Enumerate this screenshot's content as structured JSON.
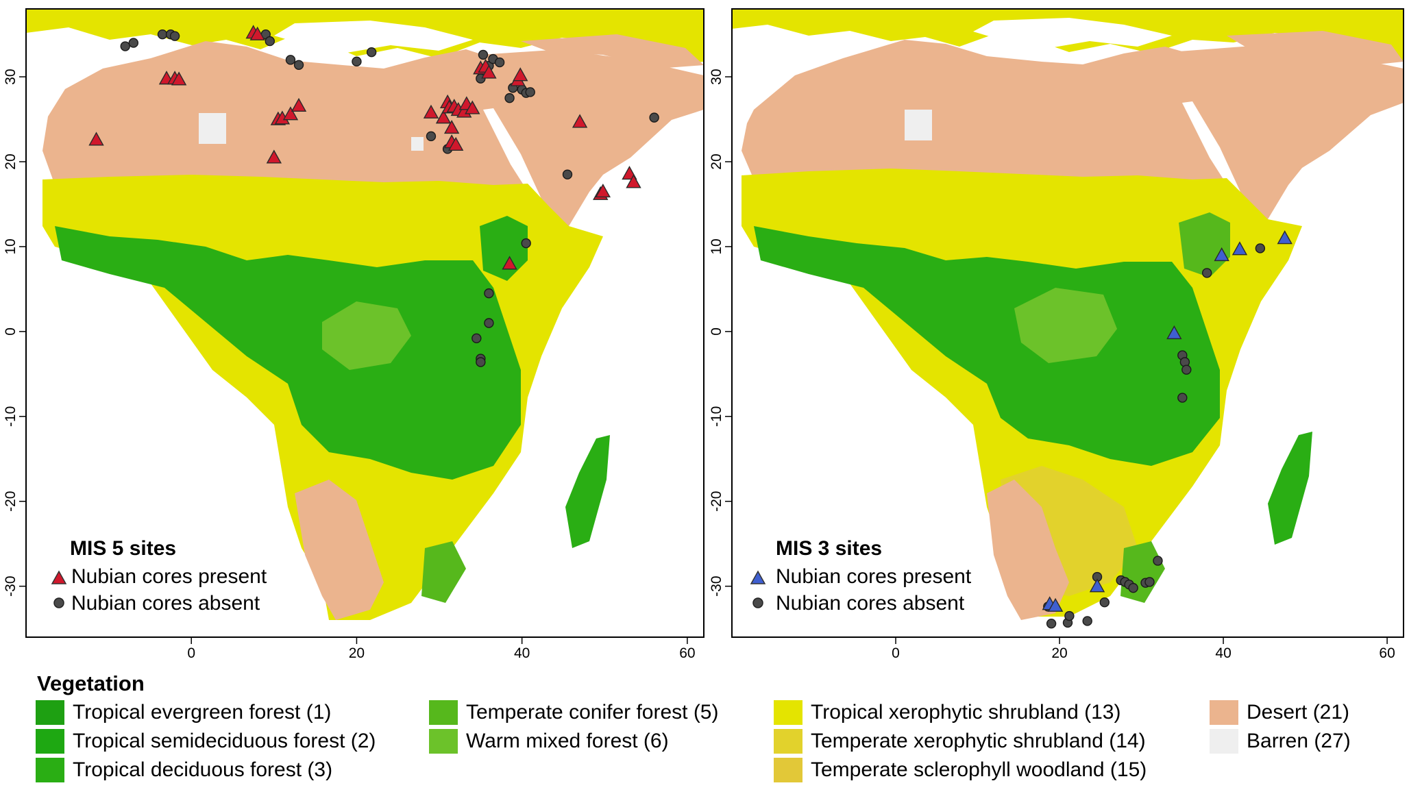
{
  "panels": [
    {
      "title": "MIS 5 sites",
      "present_label": "Nubian cores present",
      "absent_label": "Nubian cores absent",
      "present_color": "#d0182c",
      "present_sites": [
        [
          -11.5,
          22.6
        ],
        [
          -3,
          29.8
        ],
        [
          -2,
          29.8
        ],
        [
          -1.5,
          29.7
        ],
        [
          7.5,
          35.2
        ],
        [
          8,
          35
        ],
        [
          10,
          20.5
        ],
        [
          10.5,
          25
        ],
        [
          11,
          25.1
        ],
        [
          12,
          25.6
        ],
        [
          13,
          26.6
        ],
        [
          29,
          25.8
        ],
        [
          30.5,
          25.2
        ],
        [
          31,
          27
        ],
        [
          31.2,
          26.4
        ],
        [
          31.5,
          22.3
        ],
        [
          31.5,
          24
        ],
        [
          31.8,
          26.5
        ],
        [
          32,
          22
        ],
        [
          32.3,
          26.1
        ],
        [
          33,
          25.9
        ],
        [
          33.3,
          26.8
        ],
        [
          34,
          26.3
        ],
        [
          35,
          31
        ],
        [
          35.6,
          31.2
        ],
        [
          36,
          30.5
        ],
        [
          39.5,
          29.6
        ],
        [
          39.8,
          30.2
        ],
        [
          47,
          24.7
        ],
        [
          49.5,
          16.2
        ],
        [
          49.8,
          16.5
        ],
        [
          53,
          18.6
        ],
        [
          53.5,
          17.6
        ],
        [
          38.5,
          8
        ]
      ],
      "absent_sites": [
        [
          -8,
          33.6
        ],
        [
          -7,
          34
        ],
        [
          -3.5,
          35
        ],
        [
          -2.5,
          35
        ],
        [
          -2,
          34.8
        ],
        [
          9,
          35
        ],
        [
          9.5,
          34.2
        ],
        [
          12,
          32
        ],
        [
          13,
          31.4
        ],
        [
          20,
          31.8
        ],
        [
          21.8,
          32.9
        ],
        [
          29,
          23
        ],
        [
          31,
          21.5
        ],
        [
          35,
          29.8
        ],
        [
          35.3,
          32.6
        ],
        [
          36,
          31.3
        ],
        [
          36.5,
          32.1
        ],
        [
          37.3,
          31.7
        ],
        [
          38.5,
          27.5
        ],
        [
          38.9,
          28.7
        ],
        [
          40,
          28.5
        ],
        [
          40.5,
          28.1
        ],
        [
          41,
          28.2
        ],
        [
          45.5,
          18.5
        ],
        [
          56,
          25.2
        ],
        [
          40.5,
          10.4
        ],
        [
          36,
          4.5
        ],
        [
          36,
          1
        ],
        [
          34.5,
          -0.8
        ],
        [
          35,
          -3.2
        ],
        [
          35,
          -3.6
        ]
      ]
    },
    {
      "title": "MIS 3 sites",
      "present_label": "Nubian cores present",
      "absent_label": "Nubian cores absent",
      "present_color": "#3f5fd0",
      "present_sites": [
        [
          34,
          -0.2
        ],
        [
          39.8,
          9
        ],
        [
          42,
          9.7
        ],
        [
          47.5,
          11
        ],
        [
          24.6,
          -30
        ],
        [
          18.8,
          -32.1
        ],
        [
          19.5,
          -32.3
        ]
      ],
      "absent_sites": [
        [
          38,
          6.9
        ],
        [
          44.5,
          9.8
        ],
        [
          35,
          -2.8
        ],
        [
          35.3,
          -3.6
        ],
        [
          35.5,
          -4.5
        ],
        [
          35,
          -7.8
        ],
        [
          18.6,
          -32.4
        ],
        [
          19,
          -34.4
        ],
        [
          21,
          -34.3
        ],
        [
          21.2,
          -33.5
        ],
        [
          23.4,
          -34.1
        ],
        [
          24.6,
          -28.9
        ],
        [
          25.5,
          -31.9
        ],
        [
          27.5,
          -29.3
        ],
        [
          28,
          -29.5
        ],
        [
          28.5,
          -29.8
        ],
        [
          29,
          -30.2
        ],
        [
          30.5,
          -29.6
        ],
        [
          31,
          -29.5
        ],
        [
          32,
          -27
        ]
      ]
    }
  ],
  "axes": {
    "x_ticks": [
      0,
      20,
      40,
      60
    ],
    "y_ticks": [
      30,
      20,
      10,
      0,
      -10,
      -20,
      -30
    ],
    "x_range": [
      -20,
      62
    ],
    "y_range": [
      -36,
      38
    ]
  },
  "vegetation": {
    "title": "Vegetation",
    "items": [
      {
        "label": "Tropical evergreen forest (1)",
        "color": "#1ea012"
      },
      {
        "label": "Tropical semideciduous forest (2)",
        "color": "#1ea812"
      },
      {
        "label": "Tropical deciduous forest (3)",
        "color": "#2aae14"
      },
      {
        "label": "Temperate conifer forest (5)",
        "color": "#56b81c"
      },
      {
        "label": "Warm mixed forest (6)",
        "color": "#6cc22a"
      },
      {
        "label": "Tropical xerophytic shrubland (13)",
        "color": "#e4e400"
      },
      {
        "label": "Temperate xerophytic shrubland (14)",
        "color": "#e2d22c"
      },
      {
        "label": "Temperate sclerophyll woodland (15)",
        "color": "#e2c838"
      },
      {
        "label": "Desert (21)",
        "color": "#ebb48e"
      },
      {
        "label": "Barren (27)",
        "color": "#efefef"
      }
    ]
  }
}
